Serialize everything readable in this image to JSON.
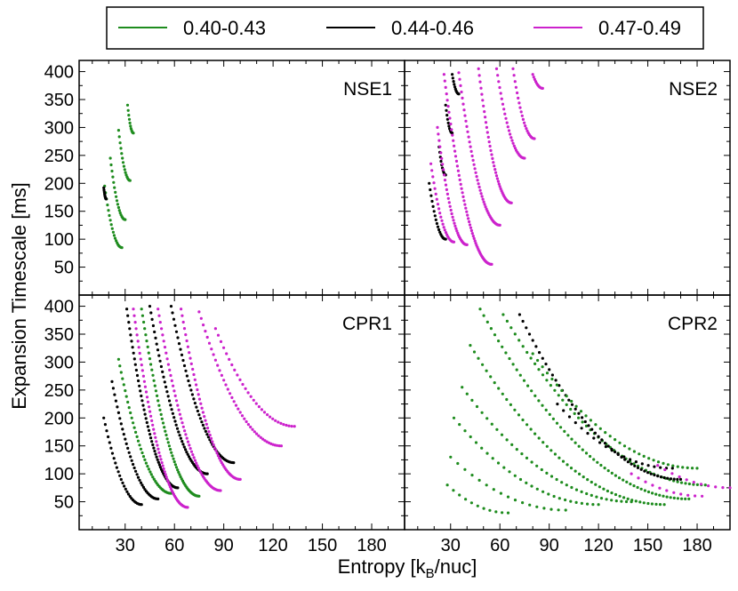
{
  "figure": {
    "xlabel_main": "Entropy [k",
    "xlabel_sub": "B",
    "xlabel_tail": "/nuc]",
    "ylabel": "Expansion Timescale [ms]"
  },
  "legend": {
    "placement": "top-center",
    "entries": [
      {
        "label": "0.40-0.43",
        "color": "#1e8c1e"
      },
      {
        "label": "0.44-0.46",
        "color": "#000000"
      },
      {
        "label": "0.47-0.49",
        "color": "#cc22cc"
      }
    ]
  },
  "chart_data": [
    {
      "type": "scatter",
      "title": "NSE1",
      "xlim": [
        2,
        200
      ],
      "ylim": [
        0,
        420
      ],
      "xticks": [],
      "yticks": [
        50,
        100,
        150,
        200,
        250,
        300,
        350,
        400
      ],
      "tracks": [
        {
          "group": 0,
          "x0": 17.5,
          "x1": 28,
          "y0": 195,
          "y1": 85
        },
        {
          "group": 1,
          "x0": 17,
          "x1": 18.5,
          "y0": 192,
          "y1": 172
        },
        {
          "group": 0,
          "x0": 21,
          "x1": 30,
          "y0": 245,
          "y1": 135
        },
        {
          "group": 0,
          "x0": 26,
          "x1": 33,
          "y0": 295,
          "y1": 205
        },
        {
          "group": 0,
          "x0": 31.5,
          "x1": 35,
          "y0": 340,
          "y1": 290
        }
      ]
    },
    {
      "type": "scatter",
      "title": "NSE2",
      "xlim": [
        2,
        200
      ],
      "ylim": [
        0,
        420
      ],
      "xticks": [],
      "yticks": [],
      "tracks": [
        {
          "group": 1,
          "x0": 17,
          "x1": 27,
          "y0": 200,
          "y1": 100
        },
        {
          "group": 2,
          "x0": 18,
          "x1": 32,
          "y0": 235,
          "y1": 95
        },
        {
          "group": 1,
          "x0": 23,
          "x1": 27,
          "y0": 265,
          "y1": 215
        },
        {
          "group": 2,
          "x0": 22,
          "x1": 40,
          "y0": 300,
          "y1": 90
        },
        {
          "group": 1,
          "x0": 27,
          "x1": 31,
          "y0": 340,
          "y1": 290
        },
        {
          "group": 2,
          "x0": 26,
          "x1": 55,
          "y0": 395,
          "y1": 55
        },
        {
          "group": 1,
          "x0": 31,
          "x1": 35,
          "y0": 395,
          "y1": 360
        },
        {
          "group": 2,
          "x0": 35,
          "x1": 60,
          "y0": 398,
          "y1": 125
        },
        {
          "group": 2,
          "x0": 47,
          "x1": 67,
          "y0": 405,
          "y1": 165
        },
        {
          "group": 2,
          "x0": 58,
          "x1": 75,
          "y0": 405,
          "y1": 245
        },
        {
          "group": 2,
          "x0": 68,
          "x1": 81,
          "y0": 405,
          "y1": 280
        },
        {
          "group": 2,
          "x0": 80,
          "x1": 86,
          "y0": 395,
          "y1": 370
        }
      ]
    },
    {
      "type": "scatter",
      "title": "CPR1",
      "xlim": [
        2,
        200
      ],
      "ylim": [
        0,
        420
      ],
      "xticks": [],
      "yticks": [
        50,
        100,
        150,
        200,
        250,
        300,
        350,
        400
      ],
      "tracks": [
        {
          "group": 1,
          "x0": 17,
          "x1": 40,
          "y0": 200,
          "y1": 45
        },
        {
          "group": 1,
          "x0": 22,
          "x1": 50,
          "y0": 265,
          "y1": 55
        },
        {
          "group": 0,
          "x0": 26,
          "x1": 58,
          "y0": 305,
          "y1": 65
        },
        {
          "group": 1,
          "x0": 31,
          "x1": 62,
          "y0": 395,
          "y1": 75
        },
        {
          "group": 2,
          "x0": 35,
          "x1": 68,
          "y0": 395,
          "y1": 40
        },
        {
          "group": 0,
          "x0": 40,
          "x1": 75,
          "y0": 395,
          "y1": 60
        },
        {
          "group": 1,
          "x0": 45,
          "x1": 80,
          "y0": 400,
          "y1": 100
        },
        {
          "group": 2,
          "x0": 50,
          "x1": 88,
          "y0": 395,
          "y1": 70
        },
        {
          "group": 1,
          "x0": 58,
          "x1": 96,
          "y0": 400,
          "y1": 120
        },
        {
          "group": 2,
          "x0": 64,
          "x1": 100,
          "y0": 395,
          "y1": 90
        },
        {
          "group": 2,
          "x0": 75,
          "x1": 125,
          "y0": 390,
          "y1": 150
        },
        {
          "group": 2,
          "x0": 85,
          "x1": 133,
          "y0": 360,
          "y1": 185
        }
      ]
    },
    {
      "type": "scatter",
      "title": "CPR2",
      "xlim": [
        2,
        200
      ],
      "ylim": [
        0,
        420
      ],
      "xticks": [
        30,
        60,
        90,
        120,
        150,
        180
      ],
      "yticks": [],
      "tracks": [
        {
          "group": 0,
          "x0": 28,
          "x1": 65,
          "y0": 80,
          "y1": 30
        },
        {
          "group": 0,
          "x0": 30,
          "x1": 100,
          "y0": 130,
          "y1": 35
        },
        {
          "group": 0,
          "x0": 32,
          "x1": 120,
          "y0": 200,
          "y1": 45
        },
        {
          "group": 0,
          "x0": 37,
          "x1": 140,
          "y0": 255,
          "y1": 50
        },
        {
          "group": 0,
          "x0": 42,
          "x1": 160,
          "y0": 330,
          "y1": 45
        },
        {
          "group": 0,
          "x0": 48,
          "x1": 175,
          "y0": 395,
          "y1": 55
        },
        {
          "group": 0,
          "x0": 62,
          "x1": 185,
          "y0": 385,
          "y1": 80
        },
        {
          "group": 1,
          "x0": 72,
          "x1": 170,
          "y0": 385,
          "y1": 90
        },
        {
          "group": 0,
          "x0": 80,
          "x1": 180,
          "y0": 315,
          "y1": 110
        },
        {
          "group": 1,
          "x0": 95,
          "x1": 165,
          "y0": 225,
          "y1": 110
        },
        {
          "group": 2,
          "x0": 140,
          "x1": 183,
          "y0": 100,
          "y1": 60
        },
        {
          "group": 2,
          "x0": 156,
          "x1": 200,
          "y0": 115,
          "y1": 75
        }
      ]
    }
  ]
}
